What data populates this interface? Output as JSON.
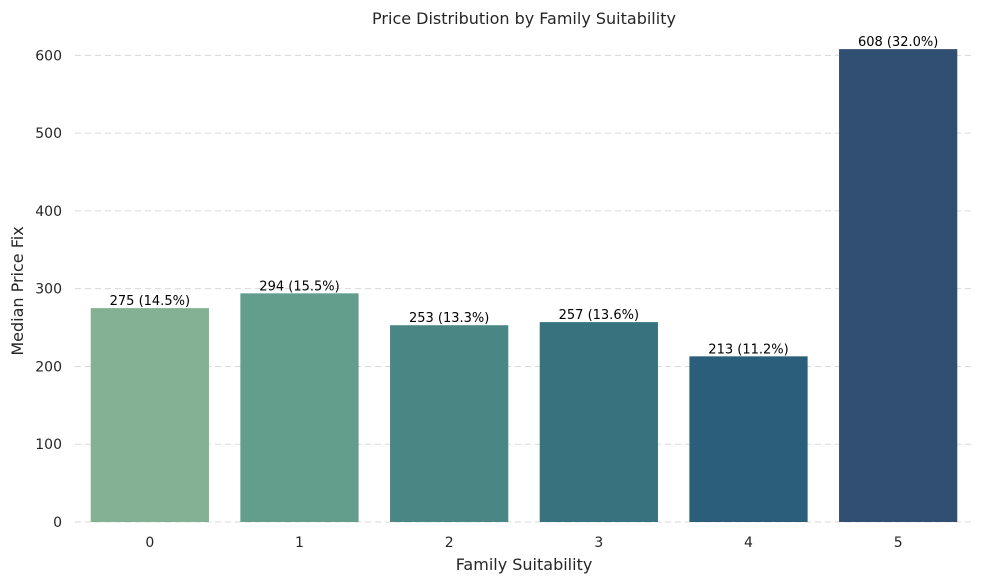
{
  "chart_data": {
    "type": "bar",
    "title": "Price Distribution by Family Suitability",
    "xlabel": "Family Suitability",
    "ylabel": "Median Price Fix",
    "categories": [
      "0",
      "1",
      "2",
      "3",
      "4",
      "5"
    ],
    "values": [
      275,
      294,
      253,
      257,
      213,
      608
    ],
    "data_labels": [
      "275 (14.5%)",
      "294 (15.5%)",
      "253 (13.3%)",
      "257 (13.6%)",
      "213 (11.2%)",
      "608 (32.0%)"
    ],
    "colors": [
      "#84b193",
      "#639d8c",
      "#4a8683",
      "#37727e",
      "#2b5e7a",
      "#314f72"
    ],
    "yticks": [
      0,
      100,
      200,
      300,
      400,
      500,
      600
    ],
    "ylim": [
      0,
      630
    ],
    "grid": "y-dashed",
    "legend": "none"
  }
}
